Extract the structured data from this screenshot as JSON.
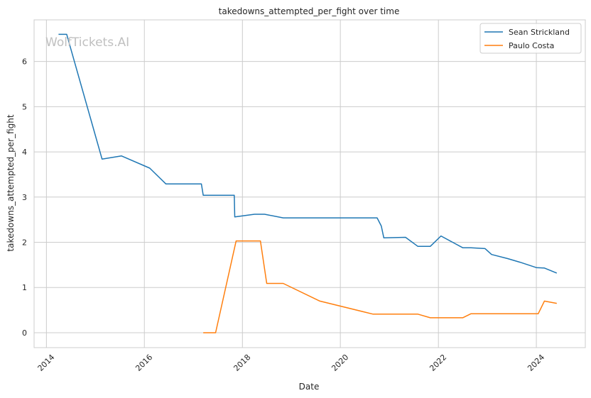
{
  "chart_data": {
    "type": "line",
    "title": "takedowns_attempted_per_fight over time",
    "xlabel": "Date",
    "ylabel": "takedowns_attempted_per_fight",
    "watermark": "WolfTickets.AI",
    "xlim": [
      "2013-10-01",
      "2024-12-31"
    ],
    "ylim": [
      -0.33,
      6.92
    ],
    "x_ticks": [
      "2014",
      "2016",
      "2018",
      "2020",
      "2022",
      "2024"
    ],
    "y_ticks": [
      0,
      1,
      2,
      3,
      4,
      5,
      6
    ],
    "grid": true,
    "legend_position": "top-right",
    "series": [
      {
        "name": "Sean Strickland",
        "color": "#1f77b4",
        "points": [
          [
            "2014-04-01",
            6.6
          ],
          [
            "2014-06-01",
            6.6
          ],
          [
            "2015-02-20",
            3.84
          ],
          [
            "2015-07-15",
            3.91
          ],
          [
            "2016-02-10",
            3.64
          ],
          [
            "2016-06-10",
            3.29
          ],
          [
            "2017-03-01",
            3.29
          ],
          [
            "2017-03-15",
            3.04
          ],
          [
            "2017-11-01",
            3.04
          ],
          [
            "2017-11-05",
            2.56
          ],
          [
            "2018-04-01",
            2.62
          ],
          [
            "2018-06-15",
            2.62
          ],
          [
            "2018-11-01",
            2.54
          ],
          [
            "2020-10-01",
            2.54
          ],
          [
            "2020-11-01",
            2.36
          ],
          [
            "2020-11-20",
            2.1
          ],
          [
            "2021-05-01",
            2.11
          ],
          [
            "2021-08-01",
            1.91
          ],
          [
            "2021-11-01",
            1.91
          ],
          [
            "2022-01-20",
            2.14
          ],
          [
            "2022-07-01",
            1.88
          ],
          [
            "2022-09-01",
            1.88
          ],
          [
            "2022-12-15",
            1.86
          ],
          [
            "2023-02-01",
            1.73
          ],
          [
            "2023-06-01",
            1.64
          ],
          [
            "2023-09-01",
            1.56
          ],
          [
            "2024-01-01",
            1.44
          ],
          [
            "2024-03-01",
            1.43
          ],
          [
            "2024-06-01",
            1.32
          ]
        ]
      },
      {
        "name": "Paulo Costa",
        "color": "#ff7f0e",
        "points": [
          [
            "2017-03-15",
            0.0
          ],
          [
            "2017-06-15",
            0.0
          ],
          [
            "2017-11-15",
            2.03
          ],
          [
            "2018-05-15",
            2.03
          ],
          [
            "2018-07-01",
            1.09
          ],
          [
            "2018-11-01",
            1.09
          ],
          [
            "2019-08-01",
            0.7
          ],
          [
            "2020-09-01",
            0.41
          ],
          [
            "2021-08-01",
            0.41
          ],
          [
            "2021-11-01",
            0.33
          ],
          [
            "2022-07-01",
            0.33
          ],
          [
            "2022-09-01",
            0.42
          ],
          [
            "2024-01-15",
            0.42
          ],
          [
            "2024-03-01",
            0.7
          ],
          [
            "2024-06-01",
            0.65
          ]
        ]
      }
    ]
  }
}
